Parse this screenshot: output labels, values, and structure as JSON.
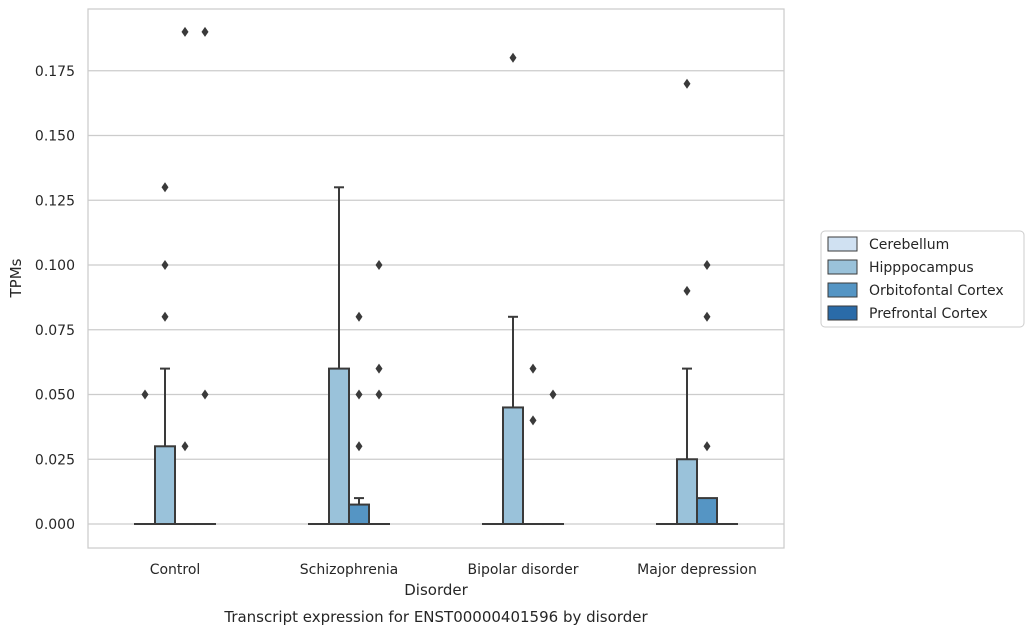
{
  "chart_data": {
    "type": "box",
    "title": "Transcript expression for ENST00000401596 by disorder",
    "xlabel": "Disorder",
    "ylabel": "TPMs",
    "categories": [
      "Control",
      "Schizophrenia",
      "Bipolar disorder",
      "Major depression"
    ],
    "ylim": [
      -0.0095,
      0.198
    ],
    "yticks": [
      0.0,
      0.025,
      0.05,
      0.075,
      0.1,
      0.125,
      0.15,
      0.175
    ],
    "ytick_labels": [
      "0.000",
      "0.025",
      "0.050",
      "0.075",
      "0.100",
      "0.125",
      "0.150",
      "0.175"
    ],
    "grid": true,
    "legend_position": "right",
    "series": [
      {
        "name": "Cerebellum",
        "color": "#d0e1f2",
        "boxes": [
          {
            "q1": 0,
            "median": 0,
            "q3": 0,
            "whisker_low": 0,
            "whisker_high": 0,
            "outliers": [
              0.05
            ]
          },
          {
            "q1": 0,
            "median": 0,
            "q3": 0,
            "whisker_low": 0,
            "whisker_high": 0,
            "outliers": []
          },
          {
            "q1": 0,
            "median": 0,
            "q3": 0,
            "whisker_low": 0,
            "whisker_high": 0,
            "outliers": []
          },
          {
            "q1": 0,
            "median": 0,
            "q3": 0,
            "whisker_low": 0,
            "whisker_high": 0,
            "outliers": []
          }
        ]
      },
      {
        "name": "Hipppocampus",
        "color": "#9ac2da",
        "boxes": [
          {
            "q1": 0,
            "median": 0,
            "q3": 0.03,
            "whisker_low": 0,
            "whisker_high": 0.06,
            "outliers": [
              0.08,
              0.1,
              0.13
            ]
          },
          {
            "q1": 0,
            "median": 0,
            "q3": 0.06,
            "whisker_low": 0,
            "whisker_high": 0.13,
            "outliers": []
          },
          {
            "q1": 0,
            "median": 0,
            "q3": 0.045,
            "whisker_low": 0,
            "whisker_high": 0.08,
            "outliers": [
              0.18
            ]
          },
          {
            "q1": 0,
            "median": 0,
            "q3": 0.025,
            "whisker_low": 0,
            "whisker_high": 0.06,
            "outliers": [
              0.09,
              0.17
            ]
          }
        ]
      },
      {
        "name": "Orbitofontal Cortex",
        "color": "#5595c4",
        "boxes": [
          {
            "q1": 0,
            "median": 0,
            "q3": 0,
            "whisker_low": 0,
            "whisker_high": 0,
            "outliers": [
              0.03,
              0.19
            ]
          },
          {
            "q1": 0,
            "median": 0,
            "q3": 0.0075,
            "whisker_low": 0,
            "whisker_high": 0.01,
            "outliers": [
              0.03,
              0.05,
              0.08
            ]
          },
          {
            "q1": 0,
            "median": 0,
            "q3": 0,
            "whisker_low": 0,
            "whisker_high": 0,
            "outliers": [
              0.04,
              0.06
            ]
          },
          {
            "q1": 0,
            "median": 0,
            "q3": 0.01,
            "whisker_low": 0,
            "whisker_high": 0.01,
            "outliers": [
              0.03,
              0.08,
              0.1
            ]
          }
        ]
      },
      {
        "name": "Prefrontal Cortex",
        "color": "#2a6ba8",
        "boxes": [
          {
            "q1": 0,
            "median": 0,
            "q3": 0,
            "whisker_low": 0,
            "whisker_high": 0,
            "outliers": [
              0.05,
              0.19
            ]
          },
          {
            "q1": 0,
            "median": 0,
            "q3": 0,
            "whisker_low": 0,
            "whisker_high": 0,
            "outliers": [
              0.05,
              0.06,
              0.1
            ]
          },
          {
            "q1": 0,
            "median": 0,
            "q3": 0,
            "whisker_low": 0,
            "whisker_high": 0,
            "outliers": [
              0.05
            ]
          },
          {
            "q1": 0,
            "median": 0,
            "q3": 0,
            "whisker_low": 0,
            "whisker_high": 0,
            "outliers": []
          }
        ]
      }
    ]
  }
}
